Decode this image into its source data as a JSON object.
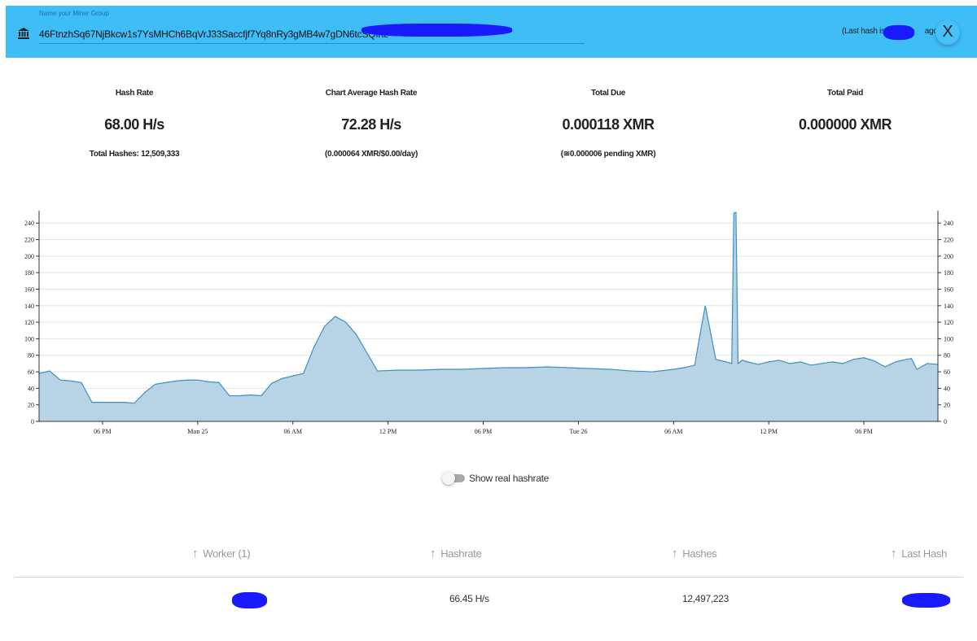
{
  "header": {
    "input_label": "Name your Miner Group",
    "address": "46FtnzhSq67NjBkcw1s7YsMHCh6BqVrJ33Saccfjf7Yq8nRy3gMB4w7gDN6tcSQfnz",
    "last_hash_prefix": "(Last hash is",
    "last_hash_suffix": "ago)",
    "close_label": "X",
    "icon": "bank-icon",
    "bg_color": "#3fbdf7"
  },
  "stats": [
    {
      "label": "Hash Rate",
      "value": "68.00 H/s",
      "sub": "Total Hashes: 12,509,333"
    },
    {
      "label": "Chart Average Hash Rate",
      "value": "72.28 H/s",
      "sub": "(0.000064 XMR/$0.00/day)"
    },
    {
      "label": "Total Due",
      "value": "0.000118 XMR",
      "sub": "(≅0.000006 pending XMR)"
    },
    {
      "label": "Total Paid",
      "value": "0.000000 XMR",
      "sub": ""
    }
  ],
  "chart_data": {
    "type": "area",
    "title": "",
    "xlabel": "",
    "ylabel": "",
    "ylim": [
      0,
      255
    ],
    "yticks": [
      0,
      20,
      40,
      60,
      80,
      100,
      120,
      140,
      160,
      180,
      200,
      220,
      240
    ],
    "x_tick_labels": [
      "06 PM",
      "Mon 25",
      "06 AM",
      "12 PM",
      "06 PM",
      "Tue 26",
      "06 AM",
      "12 PM",
      "06 PM"
    ],
    "x_hours": [
      0,
      1,
      2,
      3,
      4,
      5,
      6,
      8,
      9,
      10,
      11,
      12,
      13,
      14,
      15,
      16,
      17,
      18,
      19,
      20,
      21,
      22,
      23,
      24,
      25,
      26,
      27,
      28,
      29,
      30,
      32,
      34,
      36,
      38,
      40,
      42,
      44,
      46,
      48,
      50,
      52,
      54,
      56,
      58,
      60,
      61,
      62,
      62.5,
      63,
      64,
      65,
      65.5,
      65.7,
      65.9,
      66.1,
      66.5,
      67,
      68,
      69,
      70,
      71,
      72,
      73,
      74,
      75,
      76,
      77,
      78,
      79,
      80,
      81,
      82,
      82.5,
      83,
      84,
      85
    ],
    "values": [
      58,
      61,
      50,
      49,
      47,
      23,
      23,
      23,
      22,
      35,
      45,
      47,
      49,
      50,
      50,
      48,
      47,
      31,
      31,
      32,
      31,
      46,
      52,
      55,
      58,
      90,
      115,
      127,
      120,
      105,
      61,
      62,
      62,
      63,
      63,
      64,
      65,
      65,
      66,
      65,
      64,
      63,
      61,
      60,
      63,
      65,
      68,
      105,
      140,
      75,
      72,
      70,
      252,
      253,
      70,
      74,
      72,
      69,
      72,
      74,
      70,
      72,
      68,
      70,
      72,
      70,
      75,
      77,
      73,
      66,
      72,
      75,
      76,
      63,
      70,
      69
    ],
    "fill_color": "#b8d4e4",
    "line_color": "#3d8ec6",
    "grid": true
  },
  "toggle": {
    "label": "Show real hashrate",
    "on": false
  },
  "table": {
    "headers": [
      "Worker (1)",
      "Hashrate",
      "Hashes",
      "Last Hash"
    ],
    "rows": [
      {
        "hashrate": "66.45 H/s",
        "hashes": "12,497,223"
      }
    ]
  }
}
